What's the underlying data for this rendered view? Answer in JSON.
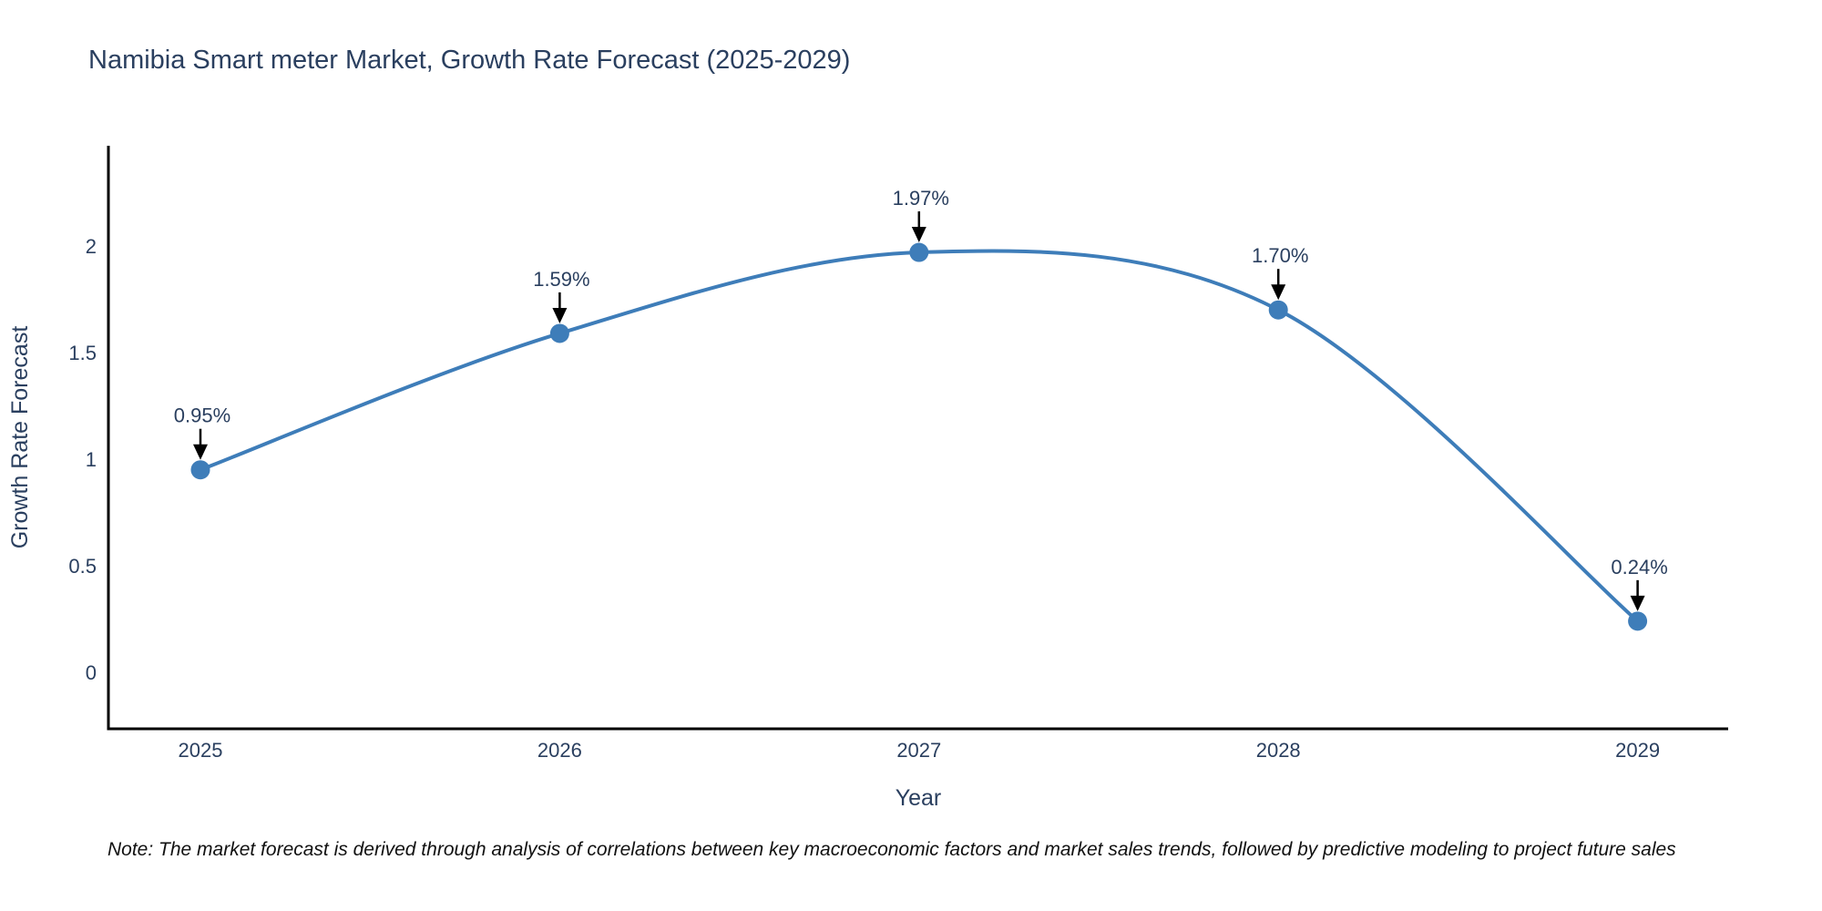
{
  "chart_data": {
    "type": "line",
    "line_shape": "spline",
    "title": "Namibia Smart meter Market, Growth Rate Forecast (2025-2029)",
    "xlabel": "Year",
    "ylabel": "Growth Rate Forecast",
    "categories": [
      "2025",
      "2026",
      "2027",
      "2028",
      "2029"
    ],
    "values": [
      0.95,
      1.59,
      1.97,
      1.7,
      0.24
    ],
    "point_labels": [
      "0.95%",
      "1.59%",
      "1.97%",
      "1.70%",
      "0.24%"
    ],
    "y_ticks": [
      0,
      0.5,
      1,
      1.5,
      2
    ],
    "y_tick_labels": [
      "0",
      "0.5",
      "1",
      "1.5",
      "2"
    ],
    "ylim": [
      -0.27,
      2.47
    ],
    "grid": false,
    "legend_position": "none",
    "colors": {
      "line": "#3e7db9",
      "marker": "#3e7db9",
      "text": "#2a3f5f",
      "axis": "#000000",
      "annotation_arrow": "#000000"
    }
  },
  "note": {
    "text": "Note: The market forecast is derived through analysis of correlations between key macroeconomic factors and market sales trends, followed by predictive modeling to project future sales"
  }
}
